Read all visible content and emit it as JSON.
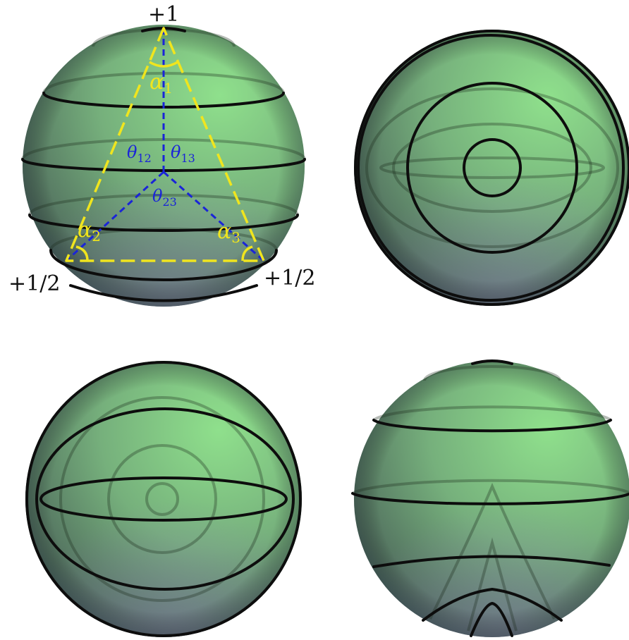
{
  "colors": {
    "sphere_light": "#8fe08c",
    "sphere_mid": "#6ea777",
    "sphere_dark": "#3d5560",
    "sphere_shadow_tint": "#8a7fb0",
    "curve": "#0d0d0d",
    "triangle": "#f0e51e",
    "geodesic": "#1a24d8"
  },
  "labels": {
    "top_vertex": "+1",
    "left_vertex": "+1/2",
    "right_vertex": "+1/2"
  },
  "angles": {
    "a1": {
      "symbol": "α",
      "sub": "1"
    },
    "a2": {
      "symbol": "α",
      "sub": "2"
    },
    "a3": {
      "symbol": "α",
      "sub": "3"
    }
  },
  "arcs": {
    "t12": {
      "symbol": "θ",
      "sub": "12"
    },
    "t13": {
      "symbol": "θ",
      "sub": "13"
    },
    "t23": {
      "symbol": "θ",
      "sub": "23"
    }
  }
}
